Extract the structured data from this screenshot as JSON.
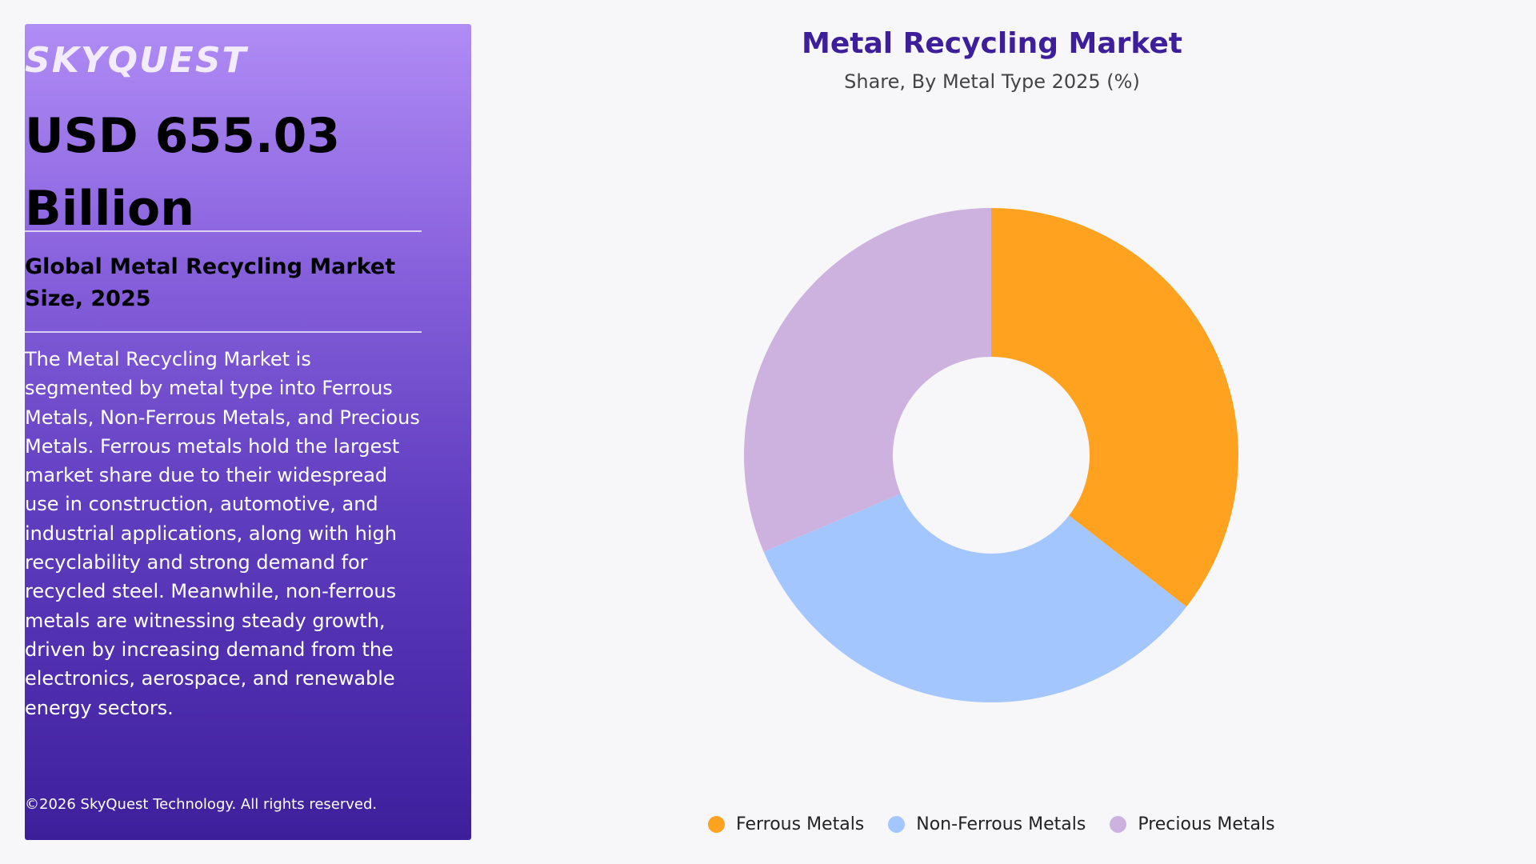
{
  "panel": {
    "brand": "SKYQUEST",
    "headline": "USD 655.03 Billion",
    "subhead": "Global Metal Recycling Market Size, 2025",
    "description": "The Metal Recycling Market is segmented by metal type into Ferrous Metals, Non-Ferrous Metals, and Precious Metals. Ferrous metals hold the largest market share due to their widespread use in construction, automotive, and industrial applications, along with high recyclability and strong demand for recycled steel. Meanwhile, non-ferrous metals are witnessing steady growth, driven by increasing demand from the electronics, aerospace, and renewable energy sectors.",
    "copyright": "©2026 SkyQuest Technology. All rights reserved."
  },
  "chart_data": {
    "type": "pie",
    "variant": "donut",
    "title": "Metal Recycling Market",
    "subtitle": "Share, By Metal Type 2025 (%)",
    "categories": [
      "Ferrous Metals",
      "Non-Ferrous Metals",
      "Precious Metals"
    ],
    "values": [
      35.5,
      33.1,
      31.4
    ],
    "colors": [
      "#ffa21f",
      "#a3c6ff",
      "#cdb2e0"
    ],
    "legend_position": "bottom"
  },
  "colors": {
    "background": "#f7f7fa",
    "panel_top": "#b08cf5",
    "panel_bottom": "#3d1f9c",
    "title": "#3d1f9c"
  }
}
